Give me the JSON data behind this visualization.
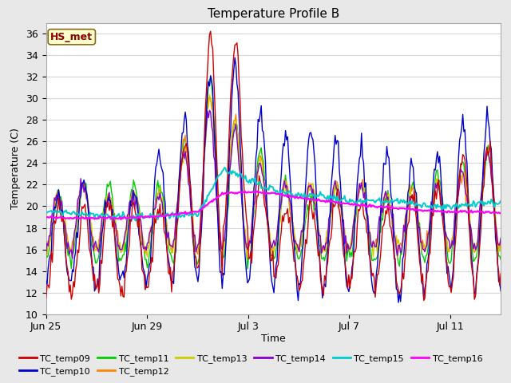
{
  "title": "Temperature Profile B",
  "xlabel": "Time",
  "ylabel": "Temperature (C)",
  "ylim": [
    10,
    37
  ],
  "yticks": [
    10,
    12,
    14,
    16,
    18,
    20,
    22,
    24,
    26,
    28,
    30,
    32,
    34,
    36
  ],
  "fig_bg_color": "#e8e8e8",
  "plot_bg_color": "#ffffff",
  "grid_color": "#d8d8d8",
  "annotation_text": "HS_met",
  "annotation_color": "#8b0000",
  "annotation_bg": "#ffffcc",
  "annotation_border": "#8b6914",
  "series_colors": {
    "TC_temp09": "#cc0000",
    "TC_temp10": "#0000cc",
    "TC_temp11": "#00cc00",
    "TC_temp12": "#ff8800",
    "TC_temp13": "#cccc00",
    "TC_temp14": "#8800cc",
    "TC_temp15": "#00cccc",
    "TC_temp16": "#ff00ff"
  },
  "x_tick_positions": [
    0,
    4,
    8,
    12,
    16
  ],
  "x_tick_labels": [
    "Jun 25",
    "Jun 29",
    "Jul 3",
    "Jul 7",
    "Jul 11"
  ],
  "n_days": 18,
  "pts_per_day": 24
}
